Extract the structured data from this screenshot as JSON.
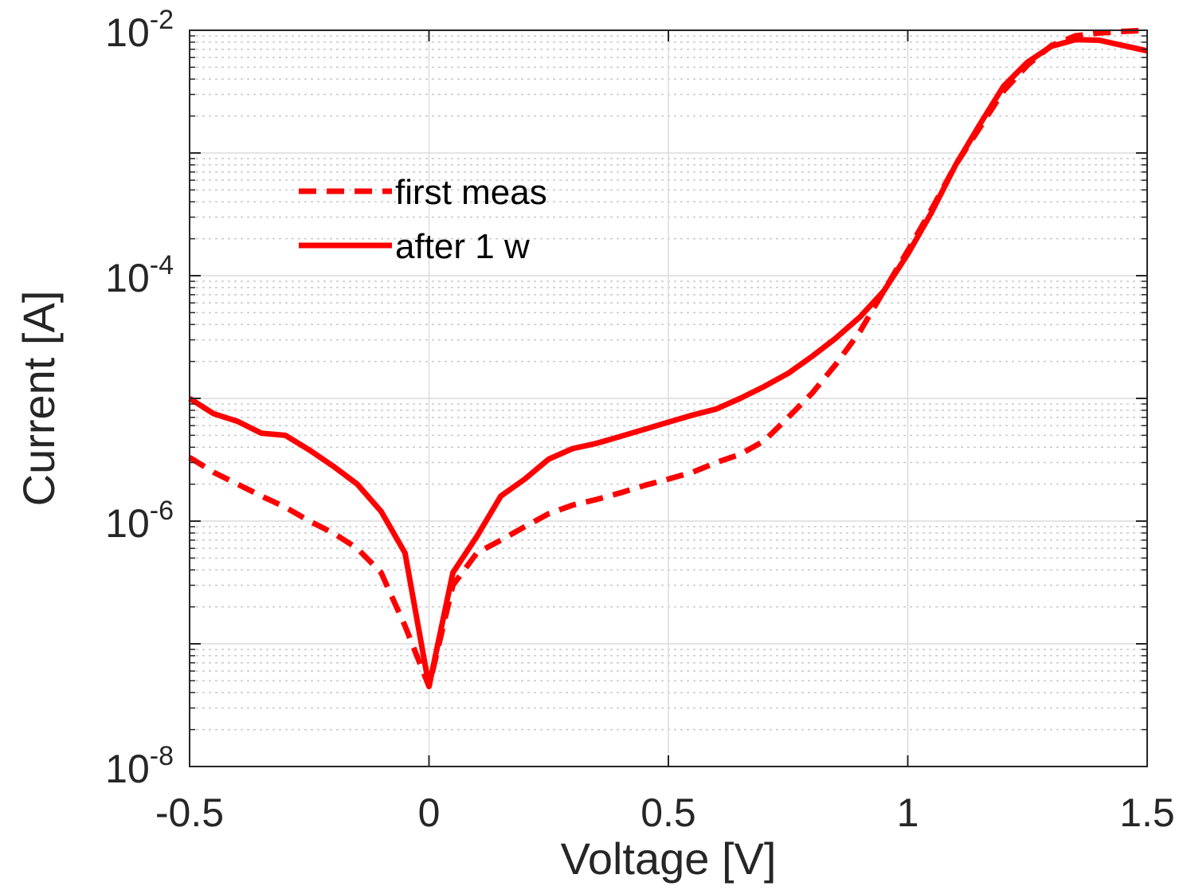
{
  "chart_data": {
    "type": "line",
    "title": "",
    "xlabel": "Voltage [V]",
    "ylabel": "Current [A]",
    "xlim": [
      -0.5,
      1.5
    ],
    "ylim_exp": [
      -8,
      -2
    ],
    "yscale": "log",
    "grid": true,
    "x_ticks": [
      {
        "value": -0.5,
        "label": "-0.5"
      },
      {
        "value": 0,
        "label": "0"
      },
      {
        "value": 0.5,
        "label": "0.5"
      },
      {
        "value": 1,
        "label": "1"
      },
      {
        "value": 1.5,
        "label": "1.5"
      }
    ],
    "y_ticks": [
      {
        "exp": -8,
        "base": "10",
        "sup": "-8"
      },
      {
        "exp": -6,
        "base": "10",
        "sup": "-6"
      },
      {
        "exp": -4,
        "base": "10",
        "sup": "-4"
      },
      {
        "exp": -2,
        "base": "10",
        "sup": "-2"
      }
    ],
    "legend_position": "upper-left",
    "color": "#ff0000",
    "series": [
      {
        "name": "first meas",
        "style": "dashed",
        "x": [
          -0.5,
          -0.45,
          -0.4,
          -0.35,
          -0.3,
          -0.25,
          -0.2,
          -0.15,
          -0.1,
          -0.05,
          0,
          0.05,
          0.1,
          0.15,
          0.2,
          0.25,
          0.3,
          0.35,
          0.4,
          0.45,
          0.5,
          0.55,
          0.6,
          0.65,
          0.7,
          0.75,
          0.8,
          0.85,
          0.9,
          0.95,
          1.0,
          1.05,
          1.1,
          1.15,
          1.2,
          1.25,
          1.3,
          1.35,
          1.4,
          1.45,
          1.5
        ],
        "y": [
          3.3e-06,
          2.5e-06,
          2e-06,
          1.6e-06,
          1.3e-06,
          1e-06,
          8e-07,
          6e-07,
          3.8e-07,
          1.4e-07,
          4.5e-08,
          3e-07,
          5.5e-07,
          7e-07,
          9e-07,
          1.15e-06,
          1.35e-06,
          1.5e-06,
          1.7e-06,
          1.95e-06,
          2.2e-06,
          2.5e-06,
          3e-06,
          3.5e-06,
          4.5e-06,
          7e-06,
          1.1e-05,
          1.9e-05,
          3.5e-05,
          7.5e-05,
          0.00016,
          0.00035,
          0.0008,
          0.0016,
          0.0032,
          0.0052,
          0.0075,
          0.009,
          0.0095,
          0.0098,
          0.01
        ]
      },
      {
        "name": "after 1 w",
        "style": "solid",
        "x": [
          -0.5,
          -0.45,
          -0.4,
          -0.35,
          -0.3,
          -0.25,
          -0.2,
          -0.15,
          -0.1,
          -0.05,
          0,
          0.05,
          0.1,
          0.15,
          0.2,
          0.25,
          0.3,
          0.35,
          0.4,
          0.45,
          0.5,
          0.55,
          0.6,
          0.65,
          0.7,
          0.75,
          0.8,
          0.85,
          0.9,
          0.95,
          1.0,
          1.05,
          1.1,
          1.15,
          1.2,
          1.25,
          1.3,
          1.35,
          1.4,
          1.45,
          1.5
        ],
        "y": [
          1e-05,
          7.5e-06,
          6.5e-06,
          5.2e-06,
          5e-06,
          3.8e-06,
          2.8e-06,
          2e-06,
          1.2e-06,
          5.5e-07,
          4.5e-08,
          3.8e-07,
          7.5e-07,
          1.6e-06,
          2.2e-06,
          3.2e-06,
          3.9e-06,
          4.3e-06,
          4.9e-06,
          5.6e-06,
          6.4e-06,
          7.3e-06,
          8.2e-06,
          1e-05,
          1.25e-05,
          1.6e-05,
          2.2e-05,
          3.1e-05,
          4.6e-05,
          7.5e-05,
          0.00015,
          0.00033,
          0.0008,
          0.0017,
          0.0035,
          0.0055,
          0.0074,
          0.0084,
          0.0083,
          0.0075,
          0.0068
        ]
      }
    ]
  }
}
